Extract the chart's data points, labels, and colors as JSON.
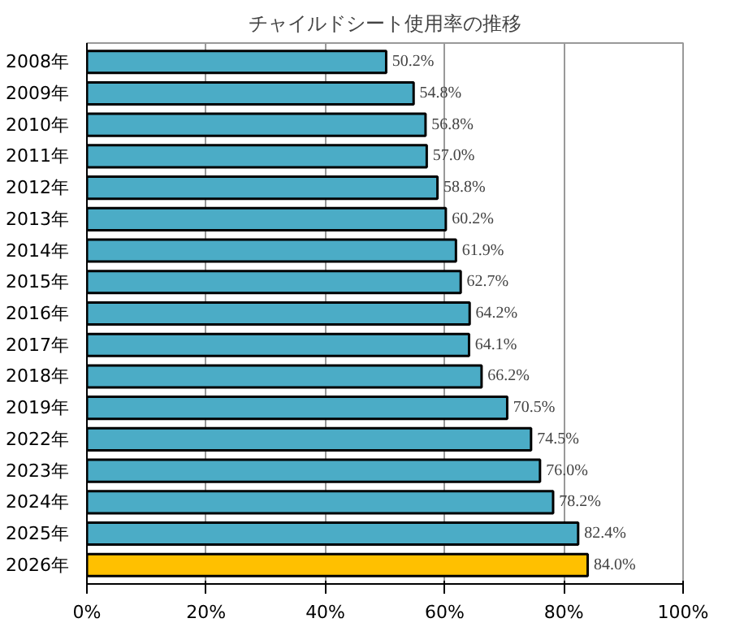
{
  "chart_data": {
    "type": "bar",
    "orientation": "horizontal",
    "title": "チャイルドシート使用率の推移",
    "categories": [
      "2008年",
      "2009年",
      "2010年",
      "2011年",
      "2012年",
      "2013年",
      "2014年",
      "2015年",
      "2016年",
      "2017年",
      "2018年",
      "2019年",
      "2022年",
      "2023年",
      "2024年",
      "2025年",
      "2026年"
    ],
    "values": [
      50.2,
      54.8,
      56.8,
      57.0,
      58.8,
      60.2,
      61.9,
      62.7,
      64.2,
      64.1,
      66.2,
      70.5,
      74.5,
      76.0,
      78.2,
      82.4,
      84.0
    ],
    "colors": [
      "#4bacc6",
      "#4bacc6",
      "#4bacc6",
      "#4bacc6",
      "#4bacc6",
      "#4bacc6",
      "#4bacc6",
      "#4bacc6",
      "#4bacc6",
      "#4bacc6",
      "#4bacc6",
      "#4bacc6",
      "#4bacc6",
      "#4bacc6",
      "#4bacc6",
      "#4bacc6",
      "#ffc000"
    ],
    "value_labels": [
      "50.2%",
      "54.8%",
      "56.8%",
      "57.0%",
      "58.8%",
      "60.2%",
      "61.9%",
      "62.7%",
      "64.2%",
      "64.1%",
      "66.2%",
      "70.5%",
      "74.5%",
      "76.0%",
      "78.2%",
      "82.4%",
      "84.0%"
    ],
    "xlim": [
      0,
      100
    ],
    "xticks": [
      {
        "value": 0,
        "label": "0%"
      },
      {
        "value": 20,
        "label": "20%"
      },
      {
        "value": 40,
        "label": "40%"
      },
      {
        "value": 60,
        "label": "60%"
      },
      {
        "value": 80,
        "label": "80%"
      },
      {
        "value": 100,
        "label": "100%"
      }
    ],
    "grid": "x"
  }
}
